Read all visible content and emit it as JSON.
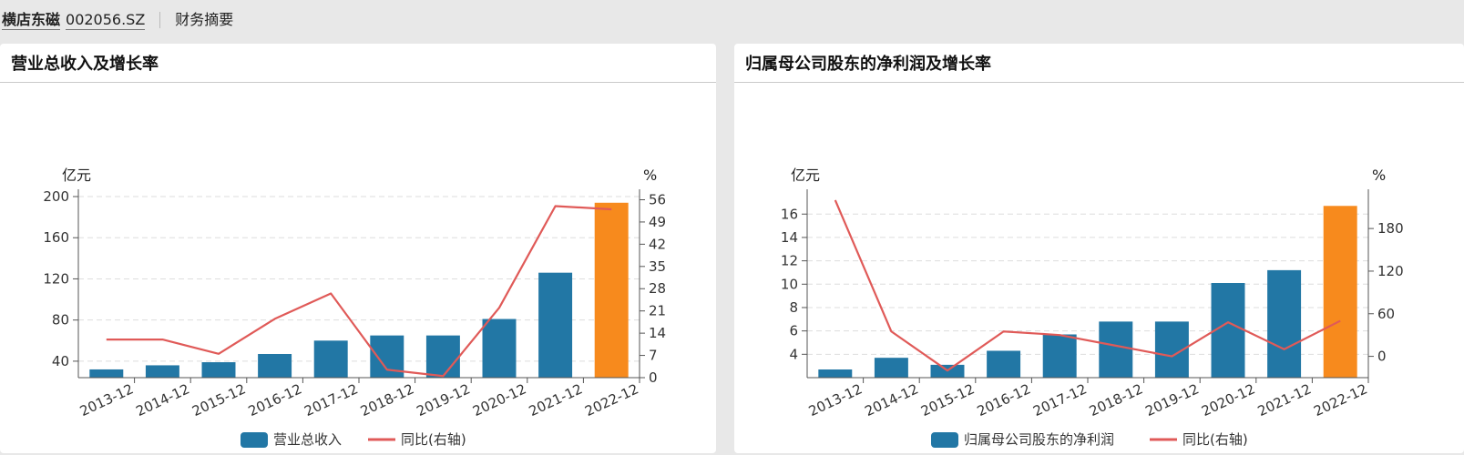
{
  "header": {
    "stock_name": "横店东磁",
    "stock_code": "002056.SZ",
    "section": "财务摘要"
  },
  "colors": {
    "bar": "#2277a5",
    "bar_highlight": "#f78a1d",
    "line": "#e05a58",
    "axis": "#555555",
    "grid": "#dddddd"
  },
  "chart_data": [
    {
      "type": "bar",
      "title": "营业总收入及增长率",
      "left_unit": "亿元",
      "right_unit": "%",
      "categories": [
        "2013-12",
        "2014-12",
        "2015-12",
        "2016-12",
        "2017-12",
        "2018-12",
        "2019-12",
        "2020-12",
        "2021-12",
        "2022-12"
      ],
      "bar_series": {
        "name": "营业总收入",
        "values": [
          32,
          36,
          39,
          47,
          60,
          65,
          65,
          81,
          126,
          194
        ]
      },
      "line_series": {
        "name": "同比(右轴)",
        "values": [
          12,
          12,
          7.5,
          18.5,
          26.5,
          2.5,
          0.5,
          22,
          54,
          53
        ]
      },
      "left_ticks": [
        40,
        80,
        120,
        160,
        200
      ],
      "right_ticks": [
        0,
        7,
        14,
        21,
        28,
        35,
        42,
        49,
        56
      ],
      "ylim_left": [
        24,
        200
      ],
      "ylim_right": [
        0,
        57
      ],
      "highlight_last": true,
      "grid": true,
      "legend_position": "bottom"
    },
    {
      "type": "bar",
      "title": "归属母公司股东的净利润及增长率",
      "left_unit": "亿元",
      "right_unit": "%",
      "categories": [
        "2013-12",
        "2014-12",
        "2015-12",
        "2016-12",
        "2017-12",
        "2018-12",
        "2019-12",
        "2020-12",
        "2021-12",
        "2022-12"
      ],
      "bar_series": {
        "name": "归属母公司股东的净利润",
        "values": [
          2.7,
          3.7,
          3.1,
          4.3,
          5.7,
          6.8,
          6.8,
          10.1,
          11.2,
          16.7
        ]
      },
      "line_series": {
        "name": "同比(右轴)",
        "values": [
          220,
          35,
          -20,
          35,
          30,
          15,
          0,
          48,
          10,
          50
        ]
      },
      "left_ticks": [
        4,
        6,
        8,
        10,
        12,
        14,
        16
      ],
      "right_ticks": [
        0,
        60,
        120,
        180
      ],
      "ylim_left": [
        2,
        17.5
      ],
      "ylim_right": [
        -30,
        225
      ],
      "highlight_last": true,
      "grid": true,
      "legend_position": "bottom"
    }
  ]
}
